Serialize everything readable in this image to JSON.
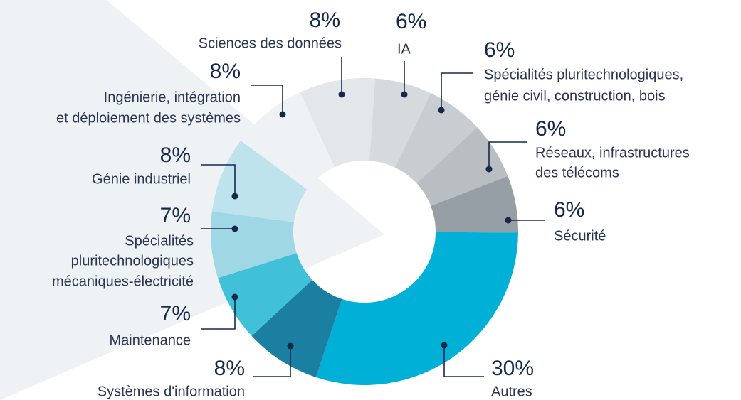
{
  "chart_data": {
    "type": "donut",
    "categories": [
      [
        "IA"
      ],
      [
        "Spécialités pluritechnologiques,",
        "génie civil, construction, bois"
      ],
      [
        "Réseaux, infrastructures",
        "des télécoms"
      ],
      [
        "Sécurité"
      ],
      [
        "Autres"
      ],
      [
        "Systèmes d'information"
      ],
      [
        "Maintenance"
      ],
      [
        "Spécialités",
        "pluritechnologiques",
        "mécaniques-électricité"
      ],
      [
        "Génie industriel"
      ],
      [
        "Ingénierie, intégration",
        "et déploiement des systèmes"
      ],
      [
        "Sciences des données"
      ]
    ],
    "values": [
      6,
      6,
      6,
      6,
      30,
      8,
      7,
      7,
      8,
      8,
      8
    ],
    "value_labels": [
      "6%",
      "6%",
      "6%",
      "6%",
      "30%",
      "8%",
      "7%",
      "7%",
      "8%",
      "8%",
      "8%"
    ],
    "colors": [
      "#d5dadd",
      "#c8cdd1",
      "#b8bec2",
      "#979fa6",
      "#00b0d6",
      "#1a7fa0",
      "#40c1d9",
      "#9fd7e5",
      "#bee3ec",
      "#eef2f4",
      "#e3e7e9"
    ]
  }
}
